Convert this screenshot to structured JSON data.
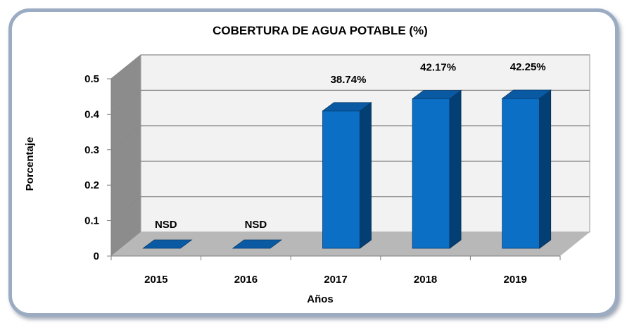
{
  "chart_data": {
    "type": "bar",
    "title": "COBERTURA DE AGUA POTABLE (%)",
    "xlabel": "Años",
    "ylabel": "Porcentaje",
    "categories": [
      "2015",
      "2016",
      "2017",
      "2018",
      "2019"
    ],
    "values": [
      0,
      0,
      0.3874,
      0.4217,
      0.4225
    ],
    "data_labels": [
      "NSD",
      "NSD",
      "38.74%",
      "42.17%",
      "42.25%"
    ],
    "y_ticks": [
      "0",
      "0.1",
      "0.2",
      "0.3",
      "0.4",
      "0.5"
    ],
    "ylim": [
      0,
      0.5
    ],
    "grid": true,
    "style": "3d",
    "colors": {
      "bar_front": "#0b6fc6",
      "bar_side": "#043f74",
      "bar_top": "#0a5aa3",
      "back_wall": "#f2f2f2",
      "side_wall": "#8c8c8c",
      "floor": "#b8b8b8",
      "frame": "#9aabc2"
    }
  }
}
